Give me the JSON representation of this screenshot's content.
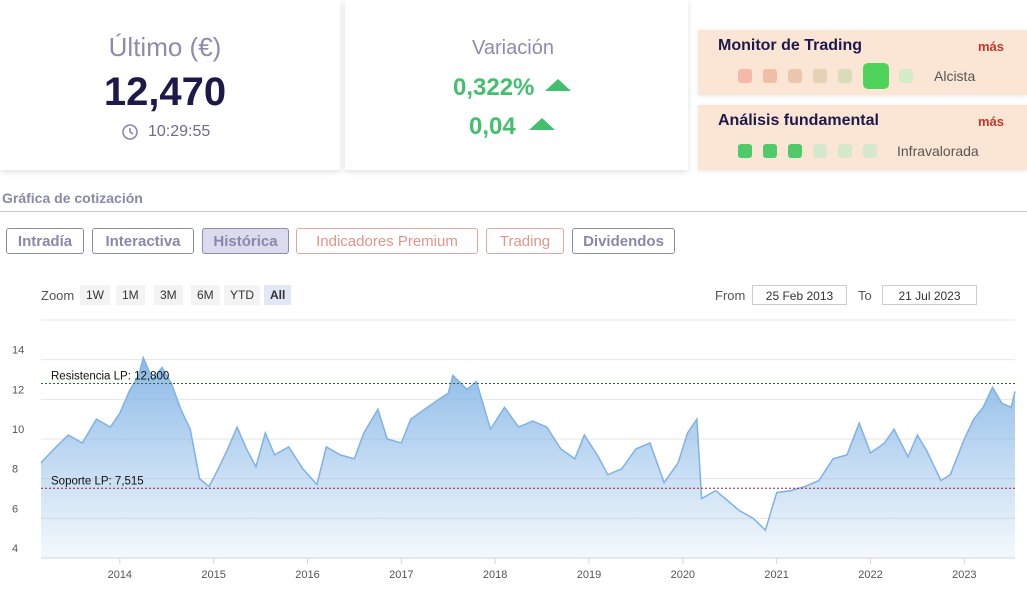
{
  "quote": {
    "label": "Último (€)",
    "last": "12,470",
    "time": "10:29:55"
  },
  "variation": {
    "label": "Variación",
    "percent": "0,322%",
    "absolute": "0,04"
  },
  "monitor": {
    "title": "Monitor de Trading",
    "more": "más",
    "status": "Alcista"
  },
  "fundamental": {
    "title": "Análisis fundamental",
    "more": "más",
    "status": "Infravalorada"
  },
  "section_title": "Gráfica de cotización",
  "tabs": [
    "Intradía",
    "Interactiva",
    "Histórica",
    "Indicadores Premium",
    "Trading",
    "Dividendos"
  ],
  "zoom": {
    "label": "Zoom",
    "buttons": [
      "1W",
      "1M",
      "3M",
      "6M",
      "YTD",
      "All"
    ]
  },
  "range": {
    "from_label": "From",
    "from": "25 Feb 2013",
    "to_label": "To",
    "to": "21 Jul 2023"
  },
  "chart_data": {
    "type": "area",
    "color": "#7fb2e5",
    "grid": true,
    "xlim": [
      2013.16,
      2023.54
    ],
    "xticks": [
      2014,
      2015,
      2016,
      2017,
      2018,
      2019,
      2020,
      2021,
      2022,
      2023
    ],
    "ylim": [
      4,
      16
    ],
    "yticks": [
      4,
      6,
      8,
      10,
      12,
      14
    ],
    "annotations": [
      {
        "label": "Resistencia LP: 12,800",
        "value": 12.8,
        "color": "#2e6b2e"
      },
      {
        "label": "Soporte LP: 7,515",
        "value": 7.515,
        "color": "#a0203a"
      }
    ],
    "x": [
      2013.16,
      2013.3,
      2013.45,
      2013.6,
      2013.75,
      2013.9,
      2014.0,
      2014.1,
      2014.2,
      2014.25,
      2014.35,
      2014.45,
      2014.55,
      2014.65,
      2014.75,
      2014.85,
      2014.95,
      2015.05,
      2015.15,
      2015.25,
      2015.35,
      2015.45,
      2015.55,
      2015.65,
      2015.8,
      2015.95,
      2016.1,
      2016.2,
      2016.35,
      2016.5,
      2016.6,
      2016.75,
      2016.85,
      2017.0,
      2017.1,
      2017.25,
      2017.4,
      2017.5,
      2017.55,
      2017.7,
      2017.8,
      2017.95,
      2018.1,
      2018.25,
      2018.4,
      2018.55,
      2018.7,
      2018.85,
      2018.95,
      2019.1,
      2019.2,
      2019.35,
      2019.5,
      2019.65,
      2019.8,
      2019.95,
      2020.05,
      2020.15,
      2020.2,
      2020.35,
      2020.45,
      2020.6,
      2020.75,
      2020.88,
      2021.0,
      2021.15,
      2021.3,
      2021.45,
      2021.6,
      2021.75,
      2021.88,
      2022.0,
      2022.15,
      2022.25,
      2022.4,
      2022.5,
      2022.6,
      2022.75,
      2022.85,
      2023.0,
      2023.1,
      2023.2,
      2023.3,
      2023.4,
      2023.5,
      2023.54
    ],
    "values": [
      8.8,
      9.5,
      10.2,
      9.8,
      11.0,
      10.6,
      11.3,
      12.4,
      13.2,
      14.1,
      13.0,
      13.6,
      12.8,
      11.5,
      10.5,
      8.0,
      7.6,
      8.5,
      9.5,
      10.6,
      9.5,
      8.6,
      10.3,
      9.2,
      9.6,
      8.5,
      7.7,
      9.6,
      9.2,
      9.0,
      10.3,
      11.5,
      10.0,
      9.8,
      11.0,
      11.5,
      12.0,
      12.3,
      13.2,
      12.5,
      12.9,
      10.5,
      11.6,
      10.6,
      10.9,
      10.6,
      9.5,
      9.0,
      10.2,
      9.1,
      8.2,
      8.5,
      9.5,
      9.8,
      7.8,
      8.8,
      10.3,
      11.0,
      7.0,
      7.4,
      7.0,
      6.4,
      6.0,
      5.4,
      7.3,
      7.4,
      7.6,
      7.9,
      9.0,
      9.2,
      10.8,
      9.3,
      9.8,
      10.5,
      9.1,
      10.2,
      9.4,
      7.9,
      8.2,
      10.0,
      11.0,
      11.6,
      12.6,
      11.8,
      11.6,
      12.4
    ]
  }
}
